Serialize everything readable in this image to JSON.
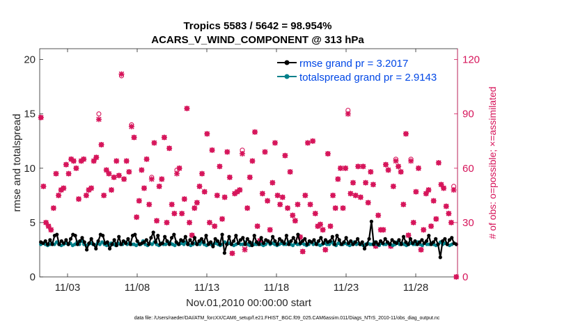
{
  "chart_data": {
    "type": "line",
    "title": "Tropics 5583 / 5642 = 98.954%",
    "subtitle": "ACARS_V_WIND_COMPONENT @ 313 hPa",
    "xlabel": "Nov.01,2010 00:00:00 start",
    "ylabel": "rmse and totalspread",
    "ylabel_right": "# of obs: o=possible; ×=assimilated",
    "x_ticks": [
      "11/03",
      "11/08",
      "11/13",
      "11/18",
      "11/23",
      "11/28"
    ],
    "x_tick_days": [
      3,
      8,
      13,
      18,
      23,
      28
    ],
    "xlim": [
      1,
      31
    ],
    "ylim": [
      0,
      21
    ],
    "y_ticks": [
      0,
      5,
      10,
      15,
      20
    ],
    "ylim_right": [
      0,
      126
    ],
    "y_ticks_right": [
      0,
      30,
      60,
      90,
      120
    ],
    "grid": false,
    "legend_position": "top-right",
    "footer": "data file: /Users/raeder/DAI/ATM_forcXX/CAM6_setup/f.e21.FHIST_BGC.f09_025.CAM6assim.011/Diags_NTrS_2010-11/obs_diag_output.nc",
    "series": [
      {
        "name": "rmse grand pr = 3.2017",
        "color": "#000000",
        "marker": "dot",
        "values": [
          3.2,
          3.1,
          3.3,
          3.0,
          3.4,
          3.0,
          3.8,
          3.9,
          3.0,
          3.3,
          3.1,
          3.4,
          3.0,
          3.5,
          3.9,
          3.8,
          3.0,
          3.3,
          3.6,
          3.2,
          2.5,
          3.1,
          3.5,
          3.0,
          2.6,
          3.3,
          3.9,
          3.8,
          3.1,
          3.2,
          2.6,
          3.0,
          3.4,
          2.9,
          3.7,
          3.0,
          3.3,
          3.1,
          3.5,
          3.0,
          3.8,
          3.9,
          3.3,
          3.0,
          3.1,
          3.2,
          3.4,
          3.0,
          3.6,
          4.1,
          3.2,
          3.8,
          3.0,
          3.1,
          3.7,
          3.3,
          3.0,
          3.6,
          3.9,
          3.2,
          3.0,
          3.4,
          3.3,
          3.7,
          3.0,
          3.4,
          3.1,
          3.6,
          3.0,
          3.3,
          3.5,
          3.2,
          3.8,
          3.0,
          3.2,
          2.8,
          3.5,
          3.3,
          3.0,
          3.9,
          2.2,
          3.0,
          3.7,
          3.0,
          3.3,
          3.8,
          3.1,
          3.4,
          3.6,
          3.0,
          3.5,
          3.2,
          2.9,
          3.8,
          3.2,
          3.0,
          3.6,
          3.1,
          3.4,
          3.3,
          3.1,
          3.7,
          3.3,
          3.0,
          3.5,
          3.3,
          3.1,
          3.8,
          3.0,
          3.3,
          3.6,
          3.2,
          3.9,
          3.1,
          3.3,
          3.5,
          3.0,
          3.3,
          3.2,
          3.4,
          3.0,
          3.3,
          3.6,
          3.1,
          3.4,
          3.2,
          3.3,
          3.7,
          3.0,
          3.8,
          3.4,
          3.0,
          3.2,
          3.6,
          3.1,
          3.3,
          3.0,
          3.2,
          3.5,
          3.0,
          3.2,
          2.6,
          3.0,
          3.5,
          5.1,
          3.0,
          3.2,
          3.0,
          3.3,
          3.1,
          3.5,
          3.2,
          3.0,
          3.4,
          3.2,
          3.1,
          3.4,
          3.0,
          3.7,
          3.2,
          3.0,
          3.5,
          3.1,
          3.3,
          3.0,
          3.2,
          3.4,
          3.1,
          3.3,
          3.8,
          3.0,
          3.2,
          3.5,
          3.0,
          1.8,
          3.3,
          3.5,
          3.0,
          3.4,
          3.6,
          3.1,
          3.0
        ]
      },
      {
        "name": "totalspread grand pr = 2.9143",
        "color": "#00808a",
        "marker": "dot",
        "values": [
          3.0,
          3.1,
          3.0,
          2.9,
          3.0,
          3.1,
          3.0,
          3.2,
          3.0,
          2.9,
          3.0,
          3.1,
          3.0,
          3.1,
          2.9,
          3.0,
          3.2,
          3.0,
          3.3,
          3.0,
          2.9,
          3.0,
          3.1,
          3.0,
          2.9,
          3.1,
          3.0,
          3.2,
          3.0,
          2.9,
          3.0,
          3.1,
          3.0,
          2.9,
          3.1,
          3.0,
          3.0,
          3.2,
          3.0,
          3.1,
          3.0,
          3.0,
          2.9,
          3.1,
          3.0,
          3.3,
          3.0,
          2.9,
          3.1,
          3.0,
          3.2,
          3.0,
          2.9,
          3.1,
          3.0,
          3.0,
          3.2,
          3.1,
          3.0,
          2.9,
          3.1,
          3.0,
          3.1,
          3.0,
          3.2,
          3.0,
          2.9,
          3.0,
          3.1,
          3.0,
          3.0,
          3.2,
          3.0,
          2.9,
          3.1,
          3.0,
          3.0,
          3.1,
          3.0,
          2.9,
          3.0,
          3.2,
          3.0,
          3.1,
          3.0,
          2.9,
          3.0,
          3.1,
          3.0,
          3.0,
          3.2,
          3.0,
          2.9,
          3.1,
          3.0,
          3.0,
          3.1,
          3.0,
          2.9,
          3.0,
          3.2,
          3.0,
          3.1,
          3.0,
          2.9,
          3.0,
          3.1,
          3.0,
          3.0,
          3.2,
          3.0,
          2.9,
          3.1,
          3.0,
          3.0,
          3.1,
          3.0,
          2.9,
          3.0,
          3.2,
          3.0,
          3.1,
          3.0,
          2.9,
          3.0,
          3.1,
          3.0,
          3.0,
          3.2,
          3.0,
          2.9,
          3.1,
          3.0,
          3.0,
          3.1,
          3.0,
          2.9,
          3.0,
          3.2,
          3.0,
          3.1,
          3.0,
          2.9,
          3.0,
          3.1,
          3.0,
          3.0,
          3.2,
          3.0,
          2.9,
          3.1,
          3.0,
          3.0,
          3.1,
          3.0,
          2.9,
          3.0,
          3.2,
          3.0,
          3.1,
          3.0,
          2.9,
          3.0,
          3.1,
          3.0,
          3.0,
          3.2,
          3.0,
          2.9,
          3.1,
          3.0,
          3.0,
          3.1,
          3.0,
          2.9,
          3.0,
          3.2,
          3.0,
          3.1,
          3.0,
          2.9,
          3.0,
          3.1,
          3.0
        ]
      }
    ],
    "obs_counts": {
      "color": "#d6145a",
      "possible": [
        88,
        50,
        30,
        28,
        26,
        38,
        57,
        45,
        48,
        49,
        62,
        57,
        65,
        64,
        60,
        43,
        64,
        65,
        45,
        48,
        49,
        64,
        66,
        90,
        73,
        45,
        59,
        57,
        48,
        55,
        64,
        56,
        111,
        54,
        64,
        58,
        84,
        77,
        33,
        42,
        59,
        49,
        65,
        40,
        55,
        74,
        31,
        50,
        54,
        77,
        30,
        71,
        40,
        35,
        59,
        60,
        35,
        43,
        93,
        30,
        23,
        38,
        41,
        50,
        57,
        47,
        79,
        30,
        70,
        28,
        45,
        61,
        32,
        44,
        69,
        55,
        13,
        46,
        47,
        48,
        70,
        17,
        38,
        55,
        64,
        80,
        28,
        20,
        46,
        69,
        42,
        26,
        52,
        74,
        45,
        40,
        44,
        67,
        38,
        58,
        34,
        31,
        40,
        22,
        14,
        45,
        74,
        40,
        75,
        35,
        28,
        29,
        26,
        15,
        68,
        28,
        45,
        38,
        54,
        60,
        38,
        60,
        92,
        46,
        52,
        45,
        61,
        44,
        61,
        52,
        41,
        58,
        51,
        17,
        34,
        26,
        26,
        62,
        59,
        17,
        50,
        65,
        61,
        58,
        40,
        79,
        23,
        65,
        30,
        47,
        60,
        15,
        26,
        46,
        48,
        28,
        42,
        32,
        63,
        51,
        49,
        39,
        35,
        30,
        50,
        0
      ],
      "assimilated": [
        88,
        50,
        30,
        28,
        26,
        38,
        57,
        45,
        48,
        49,
        62,
        57,
        65,
        64,
        60,
        43,
        64,
        65,
        45,
        48,
        49,
        64,
        66,
        87,
        73,
        45,
        59,
        57,
        48,
        55,
        64,
        56,
        112,
        54,
        64,
        58,
        83,
        77,
        33,
        42,
        59,
        49,
        65,
        40,
        54,
        74,
        31,
        50,
        54,
        77,
        30,
        71,
        40,
        35,
        57,
        60,
        35,
        43,
        93,
        30,
        23,
        38,
        41,
        50,
        57,
        47,
        79,
        30,
        70,
        28,
        45,
        61,
        32,
        44,
        69,
        55,
        13,
        46,
        47,
        48,
        68,
        15,
        38,
        55,
        64,
        80,
        28,
        20,
        46,
        69,
        42,
        26,
        52,
        74,
        45,
        40,
        44,
        67,
        38,
        58,
        34,
        31,
        40,
        22,
        14,
        45,
        74,
        40,
        75,
        35,
        28,
        29,
        26,
        15,
        68,
        28,
        45,
        38,
        54,
        60,
        38,
        60,
        90,
        46,
        52,
        45,
        61,
        44,
        61,
        52,
        41,
        58,
        51,
        17,
        34,
        26,
        26,
        62,
        59,
        17,
        50,
        64,
        61,
        58,
        40,
        79,
        23,
        64,
        30,
        47,
        60,
        15,
        26,
        46,
        48,
        28,
        42,
        32,
        63,
        51,
        49,
        39,
        35,
        30,
        48,
        0
      ]
    }
  }
}
